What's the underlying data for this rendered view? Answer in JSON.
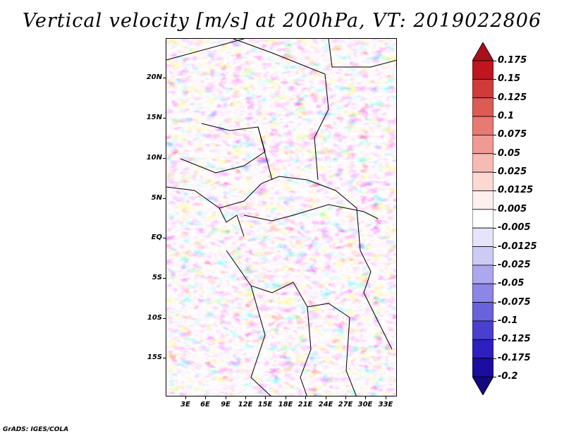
{
  "title": "Vertical velocity [m/s] at 200hPa, VT: 2019022806",
  "footer": "GrADS: IGES/COLA",
  "y_labels": [
    "20N",
    "15N",
    "10N",
    "5N",
    "EQ",
    "5S",
    "10S",
    "15S"
  ],
  "x_labels": [
    "3E",
    "6E",
    "9E",
    "12E",
    "15E",
    "18E",
    "21E",
    "24E",
    "27E",
    "30E",
    "33E"
  ],
  "colorbar": {
    "labels": [
      "0.175",
      "0.15",
      "0.125",
      "0.1",
      "0.075",
      "0.05",
      "0.025",
      "0.0125",
      "0.005",
      "-0.005",
      "-0.0125",
      "-0.025",
      "-0.05",
      "-0.075",
      "-0.1",
      "-0.125",
      "-0.175",
      "-0.2"
    ],
    "colors": [
      "#a8101a",
      "#c0141e",
      "#d03a38",
      "#dd5a55",
      "#e77a72",
      "#ef9a92",
      "#f6bcb4",
      "#fbd8d2",
      "#fff0ee",
      "#ffffff",
      "#e6e4fb",
      "#cdcaf6",
      "#aca7ef",
      "#8c86e6",
      "#6a62db",
      "#4a3fcf",
      "#2d20bf",
      "#1c0c9f",
      "#140880"
    ]
  }
}
